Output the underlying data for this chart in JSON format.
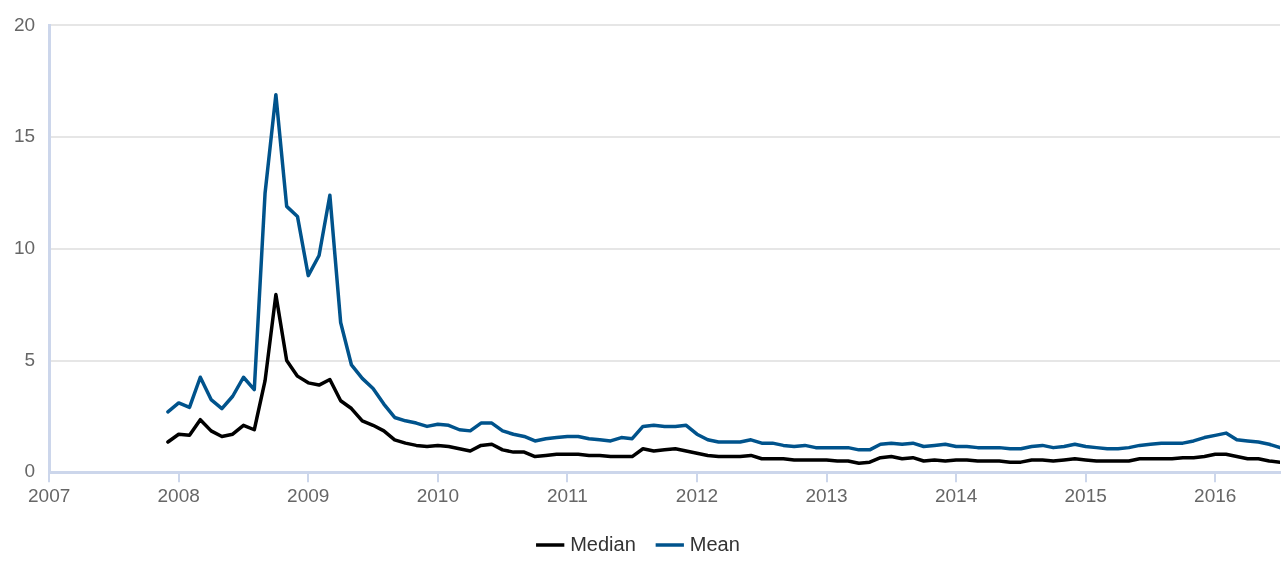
{
  "chart_data": {
    "type": "line",
    "x": [
      "2007-12",
      "2008-01",
      "2008-02",
      "2008-03",
      "2008-04",
      "2008-05",
      "2008-06",
      "2008-07",
      "2008-08",
      "2008-09",
      "2008-10",
      "2008-11",
      "2008-12",
      "2009-01",
      "2009-02",
      "2009-03",
      "2009-04",
      "2009-05",
      "2009-06",
      "2009-07",
      "2009-08",
      "2009-09",
      "2009-10",
      "2009-11",
      "2009-12",
      "2010-01",
      "2010-02",
      "2010-03",
      "2010-04",
      "2010-05",
      "2010-06",
      "2010-07",
      "2010-08",
      "2010-09",
      "2010-10",
      "2010-11",
      "2010-12",
      "2011-01",
      "2011-02",
      "2011-03",
      "2011-04",
      "2011-05",
      "2011-06",
      "2011-07",
      "2011-08",
      "2011-09",
      "2011-10",
      "2011-11",
      "2011-12",
      "2012-01",
      "2012-02",
      "2012-03",
      "2012-04",
      "2012-05",
      "2012-06",
      "2012-07",
      "2012-08",
      "2012-09",
      "2012-10",
      "2012-11",
      "2012-12",
      "2013-01",
      "2013-02",
      "2013-03",
      "2013-04",
      "2013-05",
      "2013-06",
      "2013-07",
      "2013-08",
      "2013-09",
      "2013-10",
      "2013-11",
      "2013-12",
      "2014-01",
      "2014-02",
      "2014-03",
      "2014-04",
      "2014-05",
      "2014-06",
      "2014-07",
      "2014-08",
      "2014-09",
      "2014-10",
      "2014-11",
      "2014-12",
      "2015-01",
      "2015-02",
      "2015-03",
      "2015-04",
      "2015-05",
      "2015-06",
      "2015-07",
      "2015-08",
      "2015-09",
      "2015-10",
      "2015-11",
      "2015-12",
      "2016-01",
      "2016-02",
      "2016-03",
      "2016-04",
      "2016-05",
      "2016-06",
      "2016-07"
    ],
    "series": [
      {
        "name": "Median",
        "color": "#000000",
        "values": [
          1.35,
          1.7,
          1.65,
          2.35,
          1.85,
          1.6,
          1.7,
          2.1,
          1.9,
          4.1,
          7.95,
          5.0,
          4.3,
          4.0,
          3.9,
          4.15,
          3.2,
          2.85,
          2.3,
          2.1,
          1.85,
          1.45,
          1.3,
          1.2,
          1.15,
          1.2,
          1.15,
          1.05,
          0.95,
          1.2,
          1.25,
          1.0,
          0.9,
          0.9,
          0.7,
          0.75,
          0.8,
          0.8,
          0.8,
          0.75,
          0.75,
          0.7,
          0.7,
          0.7,
          1.05,
          0.95,
          1.0,
          1.05,
          0.95,
          0.85,
          0.75,
          0.7,
          0.7,
          0.7,
          0.75,
          0.6,
          0.6,
          0.6,
          0.55,
          0.55,
          0.55,
          0.55,
          0.5,
          0.5,
          0.4,
          0.45,
          0.65,
          0.7,
          0.6,
          0.65,
          0.5,
          0.55,
          0.5,
          0.55,
          0.55,
          0.5,
          0.5,
          0.5,
          0.45,
          0.45,
          0.55,
          0.55,
          0.5,
          0.55,
          0.6,
          0.55,
          0.5,
          0.5,
          0.5,
          0.5,
          0.6,
          0.6,
          0.6,
          0.6,
          0.65,
          0.65,
          0.7,
          0.8,
          0.8,
          0.7,
          0.6,
          0.6,
          0.5,
          0.45
        ]
      },
      {
        "name": "Mean",
        "color": "#00538c",
        "values": [
          2.7,
          3.1,
          2.9,
          4.25,
          3.25,
          2.85,
          3.4,
          4.25,
          3.7,
          12.5,
          16.9,
          11.9,
          11.45,
          8.8,
          9.7,
          12.4,
          6.7,
          4.8,
          4.2,
          3.75,
          3.05,
          2.45,
          2.3,
          2.2,
          2.05,
          2.15,
          2.1,
          1.9,
          1.85,
          2.2,
          2.2,
          1.85,
          1.7,
          1.6,
          1.4,
          1.5,
          1.55,
          1.6,
          1.6,
          1.5,
          1.45,
          1.4,
          1.55,
          1.5,
          2.05,
          2.1,
          2.05,
          2.05,
          2.1,
          1.7,
          1.45,
          1.35,
          1.35,
          1.35,
          1.45,
          1.3,
          1.3,
          1.2,
          1.15,
          1.2,
          1.1,
          1.1,
          1.1,
          1.1,
          1.0,
          1.0,
          1.25,
          1.3,
          1.25,
          1.3,
          1.15,
          1.2,
          1.25,
          1.15,
          1.15,
          1.1,
          1.1,
          1.1,
          1.05,
          1.05,
          1.15,
          1.2,
          1.1,
          1.15,
          1.25,
          1.15,
          1.1,
          1.05,
          1.05,
          1.1,
          1.2,
          1.25,
          1.3,
          1.3,
          1.3,
          1.4,
          1.55,
          1.65,
          1.75,
          1.45,
          1.4,
          1.35,
          1.25,
          1.1
        ]
      }
    ],
    "xlim": [
      "2007",
      "2016-07"
    ],
    "xticks": [
      {
        "value": "2007",
        "label": "2007"
      },
      {
        "value": "2008",
        "label": "2008"
      },
      {
        "value": "2009",
        "label": "2009"
      },
      {
        "value": "2010",
        "label": "2010"
      },
      {
        "value": "2011",
        "label": "2011"
      },
      {
        "value": "2012",
        "label": "2012"
      },
      {
        "value": "2013",
        "label": "2013"
      },
      {
        "value": "2014",
        "label": "2014"
      },
      {
        "value": "2015",
        "label": "2015"
      },
      {
        "value": "2016",
        "label": "2016"
      }
    ],
    "ylim": [
      0,
      20
    ],
    "yticks": [
      0,
      5,
      10,
      15,
      20
    ],
    "grid": "y",
    "legend": "bottom",
    "marker": "none",
    "line_style": "solid"
  }
}
